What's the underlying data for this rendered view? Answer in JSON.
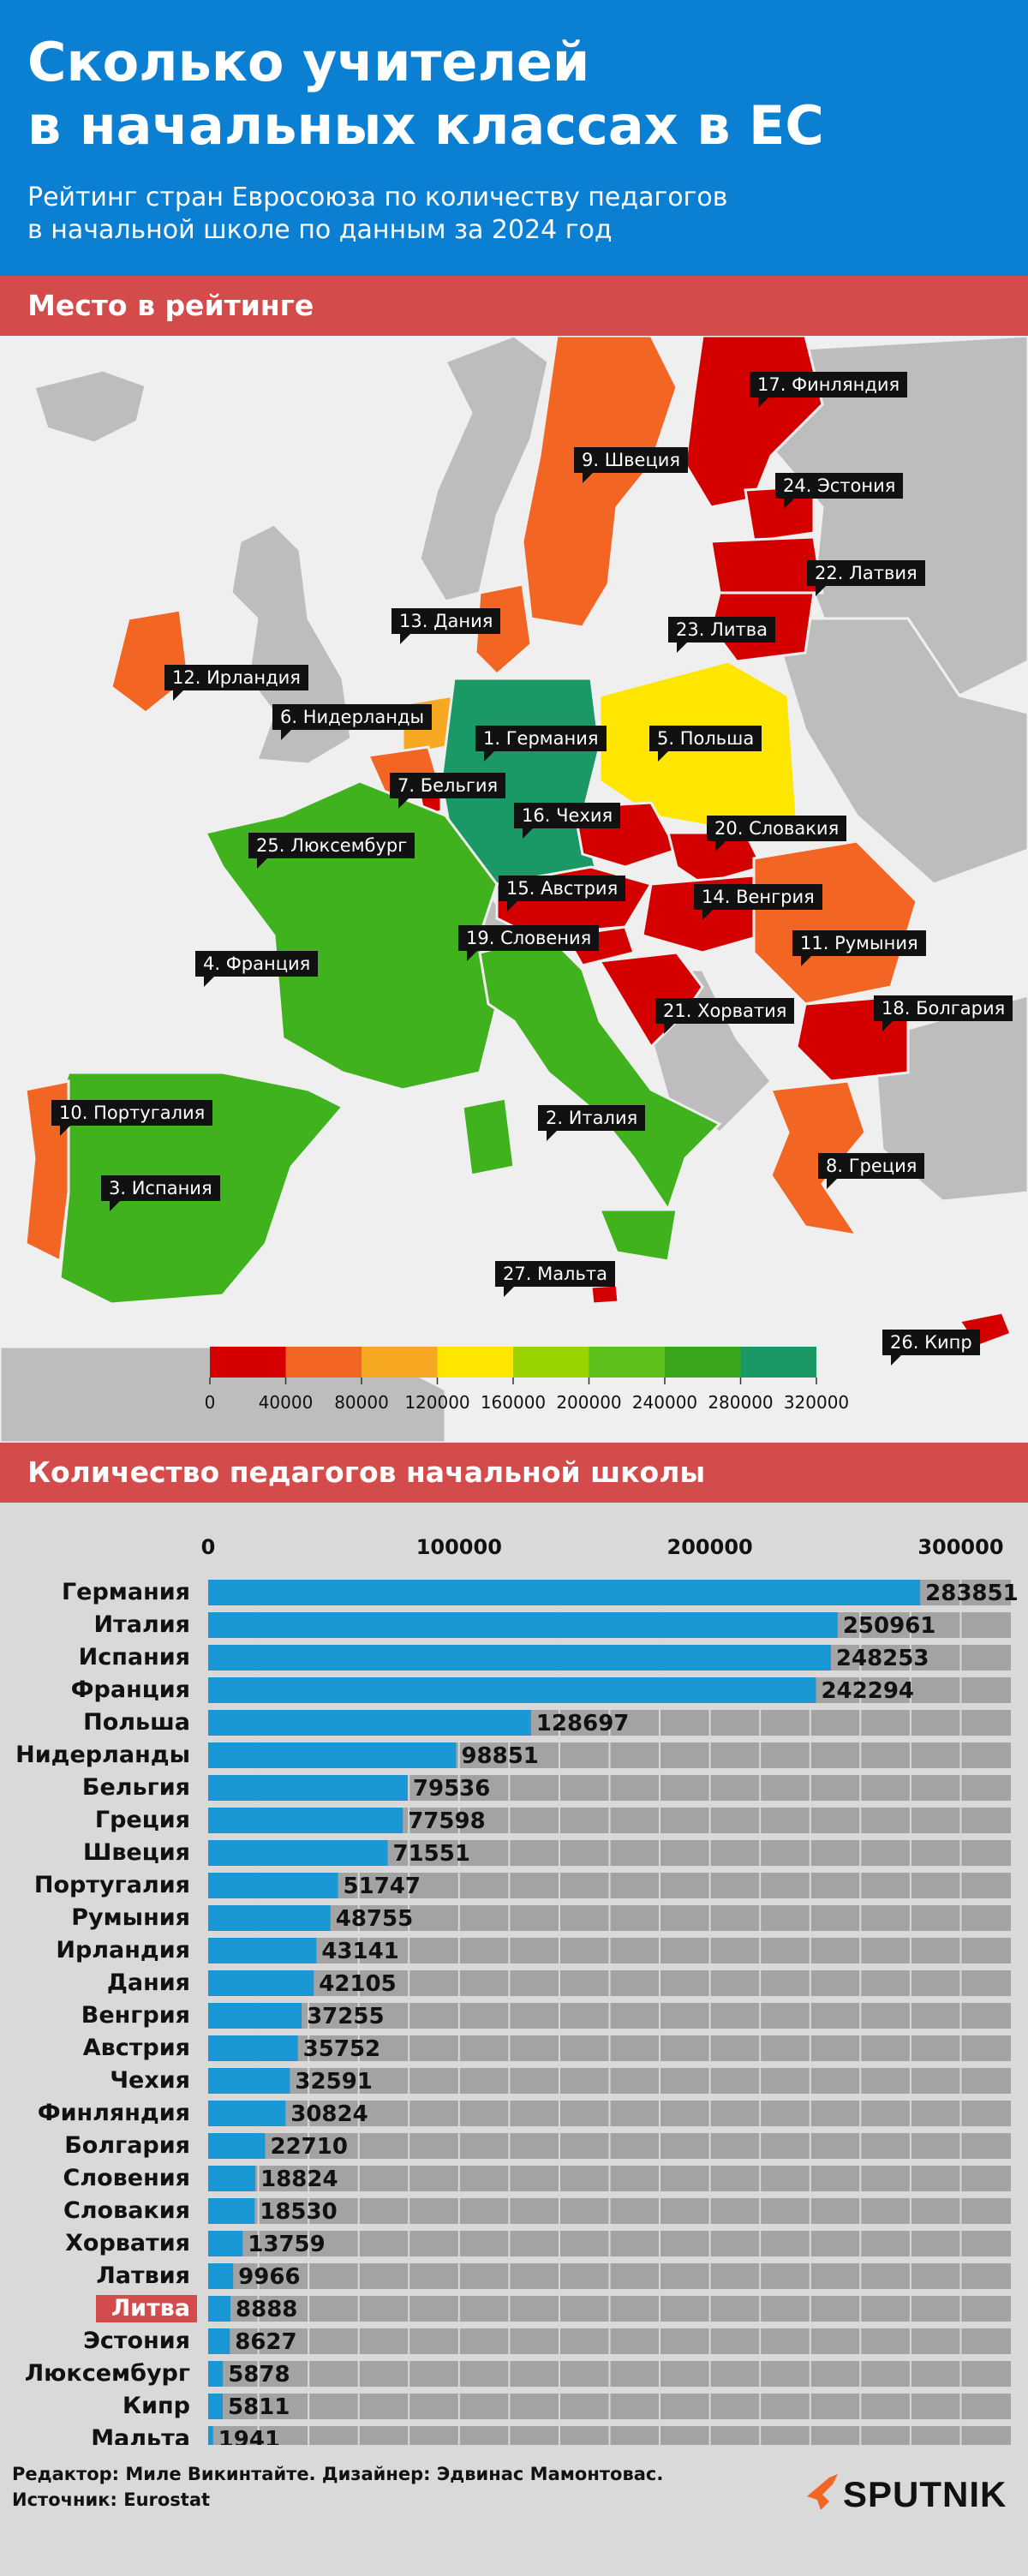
{
  "header": {
    "title_line1": "Сколько учителей",
    "title_line2": "в начальных классах в ЕС",
    "subtitle_line1": "Рейтинг стран Евросоюза по количеству педагогов",
    "subtitle_line2": "в начальной школе по данным за 2024 год"
  },
  "map_section": {
    "heading": "Место в рейтинге",
    "labels": [
      {
        "key": "finland",
        "text": "17. Финляндия"
      },
      {
        "key": "sweden",
        "text": "9. Швеция"
      },
      {
        "key": "estonia",
        "text": "24. Эстония"
      },
      {
        "key": "latvia",
        "text": "22. Латвия"
      },
      {
        "key": "lithuania",
        "text": "23. Литва"
      },
      {
        "key": "denmark",
        "text": "13. Дания"
      },
      {
        "key": "ireland",
        "text": "12. Ирландия"
      },
      {
        "key": "netherlands",
        "text": "6. Нидерланды"
      },
      {
        "key": "germany",
        "text": "1. Германия"
      },
      {
        "key": "poland",
        "text": "5. Польша"
      },
      {
        "key": "belgium",
        "text": "7. Бельгия"
      },
      {
        "key": "czechia",
        "text": "16. Чехия"
      },
      {
        "key": "luxembourg",
        "text": "25. Люксембург"
      },
      {
        "key": "slovakia",
        "text": "20. Словакия"
      },
      {
        "key": "austria",
        "text": "15. Австрия"
      },
      {
        "key": "hungary",
        "text": "14. Венгрия"
      },
      {
        "key": "slovenia",
        "text": "19. Словения"
      },
      {
        "key": "romania",
        "text": "11. Румыния"
      },
      {
        "key": "france",
        "text": "4. Франция"
      },
      {
        "key": "croatia",
        "text": "21. Хорватия"
      },
      {
        "key": "bulgaria",
        "text": "18. Болгария"
      },
      {
        "key": "portugal",
        "text": "10. Португалия"
      },
      {
        "key": "italy",
        "text": "2. Италия"
      },
      {
        "key": "greece",
        "text": "8. Греция"
      },
      {
        "key": "spain",
        "text": "3. Испания"
      },
      {
        "key": "malta",
        "text": "27. Мальта"
      },
      {
        "key": "cyprus",
        "text": "26. Кипр"
      }
    ],
    "legend": {
      "colors": [
        "#d40000",
        "#f26522",
        "#f7a823",
        "#ffe600",
        "#9ad400",
        "#5cbf1a",
        "#3aa71b",
        "#1a9966"
      ],
      "ticks": [
        "0",
        "40000",
        "80000",
        "120000",
        "160000",
        "200000",
        "240000",
        "280000",
        "320000"
      ]
    }
  },
  "bar_section": {
    "heading": "Количество педагогов начальной школы"
  },
  "chart_data": {
    "type": "bar",
    "orientation": "horizontal",
    "title": "Количество педагогов начальной школы",
    "xlim": [
      0,
      320000
    ],
    "x_ticks": [
      0,
      100000,
      200000,
      300000
    ],
    "x_tick_labels": [
      "0",
      "100000",
      "200000",
      "300000"
    ],
    "grid": true,
    "bar_color": "#1a98d5",
    "highlight_color": "#d44b4b",
    "highlight": "Литва",
    "categories": [
      "Германия",
      "Италия",
      "Испания",
      "Франция",
      "Польша",
      "Нидерланды",
      "Бельгия",
      "Греция",
      "Швеция",
      "Португалия",
      "Румыния",
      "Ирландия",
      "Дания",
      "Венгрия",
      "Австрия",
      "Чехия",
      "Финляндия",
      "Болгария",
      "Словения",
      "Словакия",
      "Хорватия",
      "Латвия",
      "Литва",
      "Эстония",
      "Люксембург",
      "Кипр",
      "Мальта"
    ],
    "values": [
      283851,
      250961,
      248253,
      242294,
      128697,
      98851,
      79536,
      77598,
      71551,
      51747,
      48755,
      43141,
      42105,
      37255,
      35752,
      32591,
      30824,
      22710,
      18824,
      18530,
      13759,
      9966,
      8888,
      8627,
      5878,
      5811,
      1941
    ]
  },
  "footer": {
    "credit": "Редактор: Миле Викинтайте.  Дизайнер: Эдвинас Мамонтовас.",
    "source": "Источник: Eurostat",
    "logo": "SPUTNIK"
  }
}
